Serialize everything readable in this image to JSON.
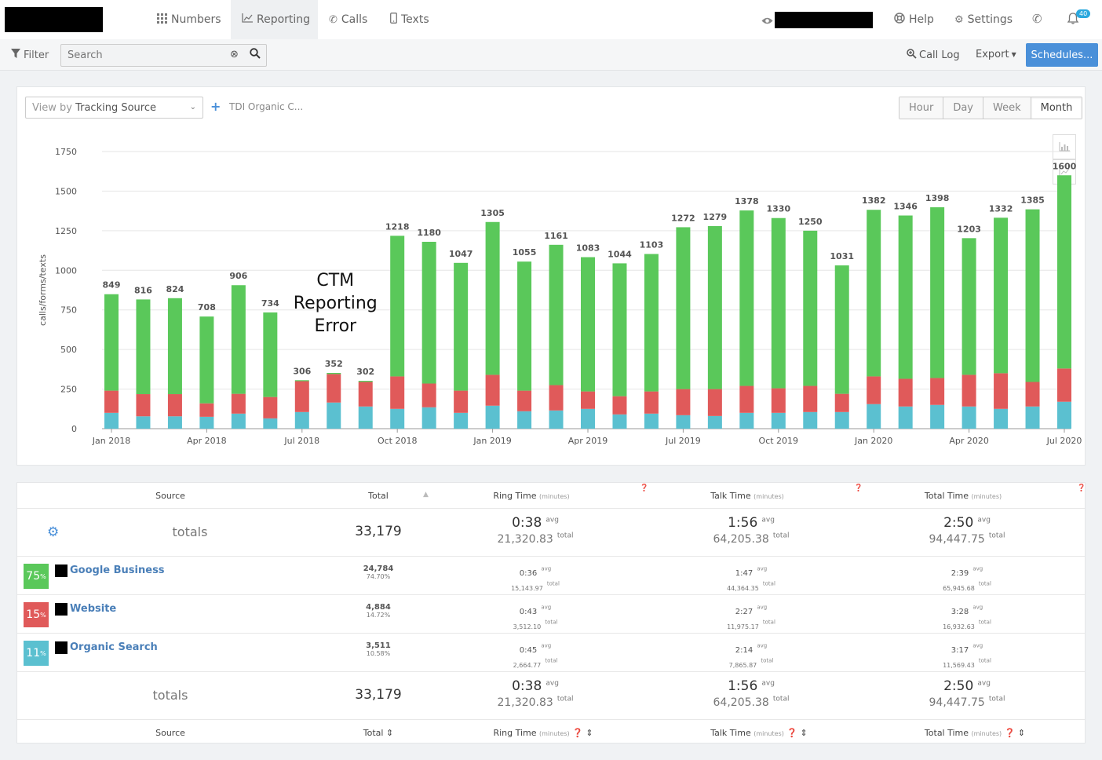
{
  "nav": {
    "tabs": [
      {
        "label": "Numbers",
        "icon": "grid-icon"
      },
      {
        "label": "Reporting",
        "icon": "chart-icon"
      },
      {
        "label": "Calls",
        "icon": "phone-icon"
      },
      {
        "label": "Texts",
        "icon": "mobile-icon"
      }
    ],
    "help_label": "Help",
    "settings_label": "Settings",
    "notification_count": "40"
  },
  "toolbar": {
    "filter_label": "Filter",
    "search_placeholder": "Search",
    "call_log_label": "Call Log",
    "export_label": "Export",
    "schedules_label": "Schedules..."
  },
  "chart_panel": {
    "view_by_prefix": "View by",
    "view_by_value": "Tracking Source",
    "filter_chip": "TDI Organic C...",
    "granularity": [
      "Hour",
      "Day",
      "Week",
      "Month"
    ],
    "active_granularity": "Month"
  },
  "chart_data": {
    "type": "bar",
    "stacked": true,
    "ylabel": "calls/forms/texts",
    "ylim": [
      0,
      1750
    ],
    "yticks": [
      0,
      250,
      500,
      750,
      1000,
      1250,
      1500,
      1750
    ],
    "grid": true,
    "categories": [
      "Jan 2018",
      "Feb 2018",
      "Mar 2018",
      "Apr 2018",
      "May 2018",
      "Jun 2018",
      "Jul 2018",
      "Aug 2018",
      "Sep 2018",
      "Oct 2018",
      "Nov 2018",
      "Dec 2018",
      "Jan 2019",
      "Feb 2019",
      "Mar 2019",
      "Apr 2019",
      "May 2019",
      "Jun 2019",
      "Jul 2019",
      "Aug 2019",
      "Sep 2019",
      "Oct 2019",
      "Nov 2019",
      "Dec 2019",
      "Jan 2020",
      "Feb 2020",
      "Mar 2020",
      "Apr 2020",
      "May 2020",
      "Jun 2020",
      "Jul 2020"
    ],
    "xtick_labels": [
      {
        "index": 0,
        "label": "Jan 2018"
      },
      {
        "index": 3,
        "label": "Apr 2018"
      },
      {
        "index": 6,
        "label": "Jul 2018"
      },
      {
        "index": 9,
        "label": "Oct 2018"
      },
      {
        "index": 12,
        "label": "Jan 2019"
      },
      {
        "index": 15,
        "label": "Apr 2019"
      },
      {
        "index": 18,
        "label": "Jul 2019"
      },
      {
        "index": 21,
        "label": "Oct 2019"
      },
      {
        "index": 24,
        "label": "Jan 2020"
      },
      {
        "index": 27,
        "label": "Apr 2020"
      },
      {
        "index": 30,
        "label": "Jul 2020"
      }
    ],
    "totals": [
      849,
      816,
      824,
      708,
      906,
      734,
      306,
      352,
      302,
      1218,
      1180,
      1047,
      1305,
      1055,
      1161,
      1083,
      1044,
      1103,
      1272,
      1279,
      1378,
      1330,
      1250,
      1031,
      1382,
      1346,
      1398,
      1203,
      1332,
      1385,
      1600
    ],
    "series": [
      {
        "color": "#5bc0d0",
        "values": [
          100,
          78,
          78,
          75,
          95,
          65,
          105,
          165,
          140,
          125,
          135,
          100,
          145,
          110,
          115,
          125,
          90,
          95,
          85,
          80,
          100,
          100,
          105,
          105,
          155,
          140,
          150,
          140,
          125,
          140,
          170
        ]
      },
      {
        "color": "#e05a5a",
        "values": [
          140,
          140,
          140,
          85,
          125,
          135,
          195,
          180,
          155,
          205,
          150,
          140,
          195,
          130,
          160,
          110,
          115,
          140,
          165,
          170,
          170,
          155,
          165,
          115,
          175,
          175,
          170,
          200,
          225,
          155,
          210
        ]
      },
      {
        "color": "#5ac85a",
        "values": [
          609,
          598,
          606,
          548,
          686,
          534,
          6,
          7,
          7,
          888,
          895,
          807,
          965,
          815,
          886,
          848,
          839,
          868,
          1022,
          1029,
          1108,
          1075,
          980,
          811,
          1052,
          1031,
          1078,
          863,
          982,
          1090,
          1220
        ]
      }
    ],
    "annotation": [
      "CTM",
      "Reporting",
      "Error"
    ]
  },
  "table": {
    "headers": {
      "source": "Source",
      "total": "Total",
      "ring": "Ring Time",
      "talk": "Talk Time",
      "total_time": "Total Time",
      "unit": "(minutes)"
    },
    "avg_label": "avg",
    "total_label": "total",
    "totals": {
      "label": "totals",
      "total": "33,179",
      "ring_avg": "0:38",
      "ring_total": "21,320.83",
      "talk_avg": "1:56",
      "talk_total": "64,205.38",
      "tt_avg": "2:50",
      "tt_total": "94,447.75"
    },
    "rows": [
      {
        "pct": "75",
        "color": "#5ac85a",
        "name": "Google Business",
        "total": "24,784",
        "share": "74.70%",
        "ring_avg": "0:36",
        "ring_total": "15,143.97",
        "talk_avg": "1:47",
        "talk_total": "44,364.35",
        "tt_avg": "2:39",
        "tt_total": "65,945.68"
      },
      {
        "pct": "15",
        "color": "#e05a5a",
        "name": "Website",
        "total": "4,884",
        "share": "14.72%",
        "ring_avg": "0:43",
        "ring_total": "3,512.10",
        "talk_avg": "2:27",
        "talk_total": "11,975.17",
        "tt_avg": "3:28",
        "tt_total": "16,932.63"
      },
      {
        "pct": "11",
        "color": "#5bc0d0",
        "name": "Organic Search",
        "total": "3,511",
        "share": "10.58%",
        "ring_avg": "0:45",
        "ring_total": "2,664.77",
        "talk_avg": "2:14",
        "talk_total": "7,865.87",
        "tt_avg": "3:17",
        "tt_total": "11,569.43"
      }
    ]
  }
}
